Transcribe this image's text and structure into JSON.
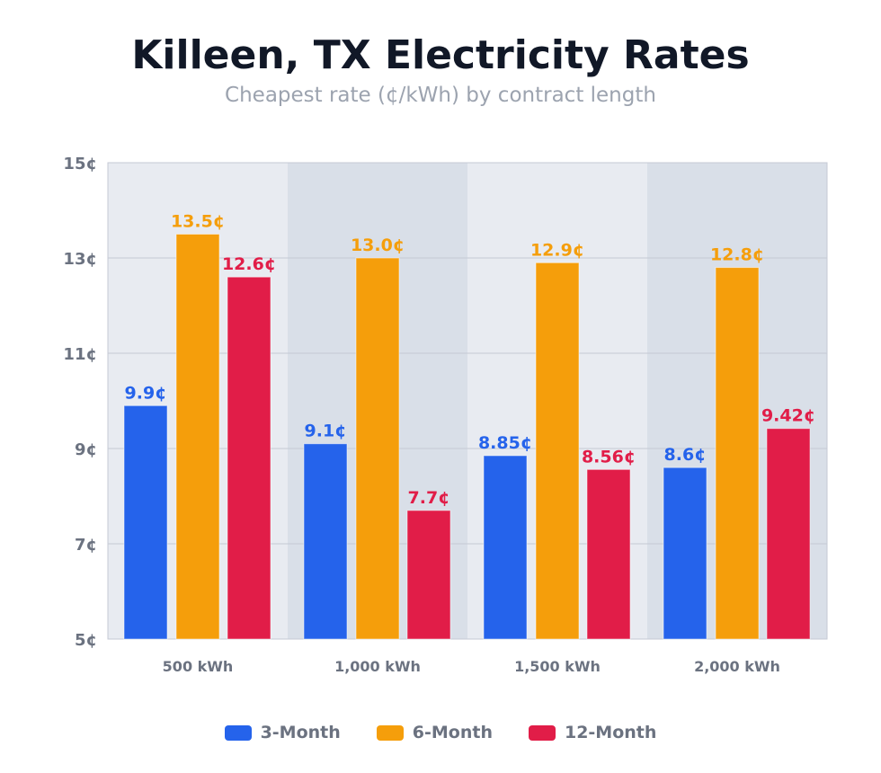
{
  "chart_data": {
    "type": "bar",
    "title": "Killeen, TX Electricity Rates",
    "subtitle": "Cheapest rate (¢/kWh) by contract length",
    "categories": [
      "500 kWh",
      "1,000 kWh",
      "1,500 kWh",
      "2,000 kWh"
    ],
    "series": [
      {
        "name": "3-Month",
        "color": "#2563eb",
        "values": [
          9.9,
          9.1,
          8.85,
          8.6
        ],
        "labels": [
          "9.9¢",
          "9.1¢",
          "8.85¢",
          "8.6¢"
        ]
      },
      {
        "name": "6-Month",
        "color": "#f59e0b",
        "values": [
          13.5,
          13.0,
          12.9,
          12.8
        ],
        "labels": [
          "13.5¢",
          "13.0¢",
          "12.9¢",
          "12.8¢"
        ]
      },
      {
        "name": "12-Month",
        "color": "#e11d48",
        "values": [
          12.6,
          7.7,
          8.56,
          9.42
        ],
        "labels": [
          "12.6¢",
          "7.7¢",
          "8.56¢",
          "9.42¢"
        ]
      }
    ],
    "ylim": [
      5,
      15
    ],
    "yticks": [
      5,
      7,
      9,
      11,
      13,
      15
    ],
    "ytick_labels": [
      "5¢",
      "7¢",
      "9¢",
      "11¢",
      "13¢",
      "15¢"
    ],
    "grid": true,
    "legend": "bottom-center",
    "band_colors": [
      "#e8ebf1",
      "#d9dfe8"
    ]
  }
}
